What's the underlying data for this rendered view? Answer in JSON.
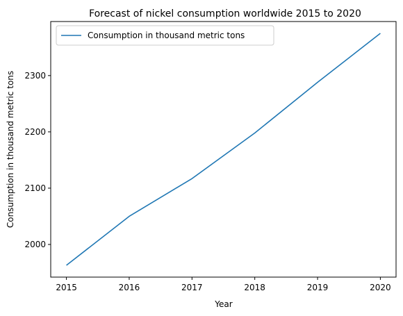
{
  "chart_data": {
    "type": "line",
    "title": "Forecast of nickel consumption worldwide 2015 to 2020",
    "xlabel": "Year",
    "ylabel": "Consumption in thousand metric tons",
    "x": [
      2015,
      2016,
      2017,
      2018,
      2019,
      2020
    ],
    "series": [
      {
        "name": "Consumption in thousand metric tons",
        "values": [
          1963,
          2050,
          2117,
          2198,
          2288,
          2375
        ],
        "color": "#1f77b4"
      }
    ],
    "xlim": [
      2014.75,
      2020.25
    ],
    "ylim": [
      1942,
      2396
    ],
    "xticks": [
      "2015",
      "2016",
      "2017",
      "2018",
      "2019",
      "2020"
    ],
    "yticks": [
      "2000",
      "2100",
      "2200",
      "2300"
    ],
    "grid": false,
    "legend_position": "top-left"
  }
}
